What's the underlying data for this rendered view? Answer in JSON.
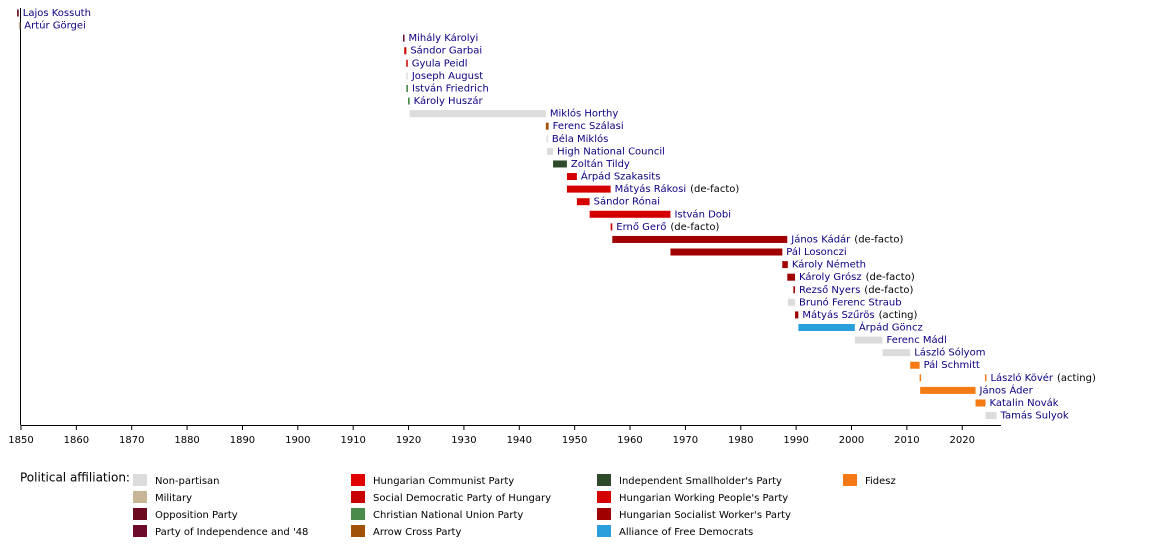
{
  "chart_data": {
    "type": "timeline",
    "xlim": [
      1849.3,
      2027
    ],
    "xticks": [
      1850,
      1860,
      1870,
      1880,
      1890,
      1900,
      1910,
      1920,
      1930,
      1940,
      1950,
      1960,
      1970,
      1980,
      1990,
      2000,
      2010,
      2020
    ],
    "legend_title": "Political affiliation:",
    "parties": [
      {
        "name": "Non-partisan",
        "color": "#dcdcdc"
      },
      {
        "name": "Military",
        "color": "#c8b496"
      },
      {
        "name": "Opposition Party",
        "color": "#6b0a1f"
      },
      {
        "name": "Party of Independence and '48",
        "color": "#6b0a2a"
      },
      {
        "name": "Hungarian Communist Party",
        "color": "#e00000"
      },
      {
        "name": "Social Democratic Party of Hungary",
        "color": "#c80000"
      },
      {
        "name": "Christian National Union Party",
        "color": "#4a8a4a"
      },
      {
        "name": "Arrow Cross Party",
        "color": "#a0520a"
      },
      {
        "name": "Independent Smallholder's Party",
        "color": "#2e4a2a"
      },
      {
        "name": "Hungarian Working People's Party",
        "color": "#d40000"
      },
      {
        "name": "Hungarian Socialist Worker's Party",
        "color": "#a00000"
      },
      {
        "name": "Alliance of Free Democrats",
        "color": "#2b9fd9"
      },
      {
        "name": "Fidesz",
        "color": "#f57a14"
      }
    ],
    "rows": [
      {
        "name": "Lajos Kossuth",
        "party": "Opposition Party",
        "terms": [
          [
            1849.3,
            1849.6
          ]
        ]
      },
      {
        "name": "Artúr Görgei",
        "party": "Military",
        "terms": [
          [
            1849.6,
            1849.65
          ]
        ]
      },
      {
        "name": "Mihály Károlyi",
        "party": "Party of Independence and '48",
        "terms": [
          [
            1919.0,
            1919.22
          ]
        ]
      },
      {
        "name": "Sándor Garbai",
        "party": "Social Democratic Party of Hungary",
        "terms": [
          [
            1919.22,
            1919.6
          ]
        ]
      },
      {
        "name": "Gyula Peidl",
        "party": "Social Democratic Party of Hungary",
        "terms": [
          [
            1919.58,
            1919.62
          ]
        ]
      },
      {
        "name": "Joseph August",
        "party": "Non-partisan",
        "terms": [
          [
            1919.6,
            1919.64
          ]
        ]
      },
      {
        "name": "István Friedrich",
        "party": "Christian National Union Party",
        "terms": [
          [
            1919.6,
            1919.9
          ]
        ]
      },
      {
        "name": "Károly Huszár",
        "party": "Christian National Union Party",
        "terms": [
          [
            1919.9,
            1920.2
          ]
        ]
      },
      {
        "name": "Miklós Horthy",
        "party": "Non-partisan",
        "terms": [
          [
            1920.2,
            1944.8
          ]
        ]
      },
      {
        "name": "Ferenc Szálasi",
        "party": "Arrow Cross Party",
        "terms": [
          [
            1944.8,
            1945.3
          ]
        ]
      },
      {
        "name": "Béla Miklós",
        "party": "Non-partisan",
        "terms": [
          [
            1944.9,
            1945.0
          ]
        ]
      },
      {
        "name": "High National Council",
        "party": "Non-partisan",
        "terms": [
          [
            1945.0,
            1946.1
          ]
        ]
      },
      {
        "name": "Zoltán Tildy",
        "party": "Independent Smallholder's Party",
        "terms": [
          [
            1946.1,
            1948.6
          ]
        ]
      },
      {
        "name": "Árpád Szakasits",
        "party": "Hungarian Working People's Party",
        "terms": [
          [
            1948.6,
            1950.4
          ]
        ]
      },
      {
        "name": "Mátyás Rákosi",
        "note": "(de-facto)",
        "party": "Hungarian Working People's Party",
        "terms": [
          [
            1948.6,
            1956.5
          ]
        ]
      },
      {
        "name": "Sándor Rónai",
        "party": "Hungarian Working People's Party",
        "terms": [
          [
            1950.4,
            1952.7
          ]
        ]
      },
      {
        "name": "István Dobi",
        "party": "Hungarian Working People's Party",
        "terms": [
          [
            1952.7,
            1967.3
          ]
        ]
      },
      {
        "name": "Ernő Gerő",
        "note": "(de-facto)",
        "party": "Hungarian Working People's Party",
        "terms": [
          [
            1956.5,
            1956.8
          ]
        ]
      },
      {
        "name": "János Kádár",
        "note": "(de-facto)",
        "party": "Hungarian Socialist Worker's Party",
        "terms": [
          [
            1956.8,
            1988.4
          ]
        ]
      },
      {
        "name": "Pál Losonczi",
        "party": "Hungarian Socialist Worker's Party",
        "terms": [
          [
            1967.3,
            1987.5
          ]
        ]
      },
      {
        "name": "Károly Németh",
        "party": "Hungarian Socialist Worker's Party",
        "terms": [
          [
            1987.5,
            1988.5
          ]
        ]
      },
      {
        "name": "Károly Grósz",
        "note": "(de-facto)",
        "party": "Hungarian Socialist Worker's Party",
        "terms": [
          [
            1988.4,
            1989.8
          ]
        ]
      },
      {
        "name": "Rezső Nyers",
        "note": "(de-facto)",
        "party": "Hungarian Socialist Worker's Party",
        "terms": [
          [
            1989.5,
            1989.8
          ]
        ]
      },
      {
        "name": "Brunó Ferenc Straub",
        "party": "Non-partisan",
        "terms": [
          [
            1988.5,
            1989.8
          ]
        ]
      },
      {
        "name": "Mátyás Szűrös",
        "note": "(acting)",
        "party": "Hungarian Socialist Worker's Party",
        "terms": [
          [
            1989.8,
            1990.4
          ]
        ]
      },
      {
        "name": "Árpád Göncz",
        "party": "Alliance of Free Democrats",
        "terms": [
          [
            1990.4,
            2000.6
          ]
        ]
      },
      {
        "name": "Ferenc Mádl",
        "party": "Non-partisan",
        "terms": [
          [
            2000.6,
            2005.6
          ]
        ]
      },
      {
        "name": "László Sólyom",
        "party": "Non-partisan",
        "terms": [
          [
            2005.6,
            2010.6
          ]
        ]
      },
      {
        "name": "Pál Schmitt",
        "party": "Fidesz",
        "terms": [
          [
            2010.6,
            2012.3
          ]
        ]
      },
      {
        "name": "László Kövér",
        "note": "(acting)",
        "party": "Fidesz",
        "terms": [
          [
            2012.3,
            2012.4
          ],
          [
            2024.1,
            2024.2
          ]
        ]
      },
      {
        "name": "János Áder",
        "party": "Fidesz",
        "terms": [
          [
            2012.4,
            2022.4
          ]
        ]
      },
      {
        "name": "Katalin Novák",
        "party": "Fidesz",
        "terms": [
          [
            2022.4,
            2024.2
          ]
        ]
      },
      {
        "name": "Tamás Sulyok",
        "party": "Non-partisan",
        "terms": [
          [
            2024.2,
            2026.2
          ]
        ]
      }
    ]
  }
}
